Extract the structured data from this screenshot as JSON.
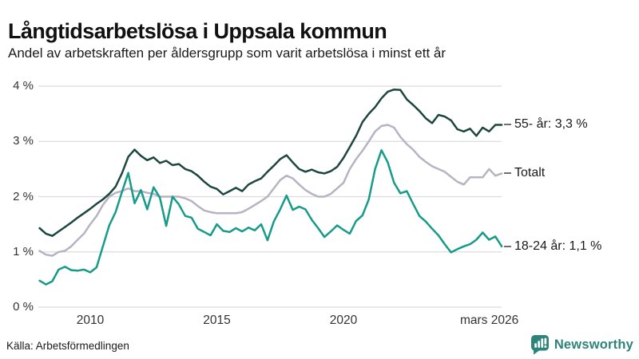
{
  "header": {
    "title": "Långtidsarbetslösa i Uppsala kommun",
    "subtitle": "Andel av arbetskraften per åldersgrupp som varit arbetslösa i minst ett år"
  },
  "chart_data": {
    "type": "line",
    "title": "Långtidsarbetslösa i Uppsala kommun",
    "subtitle": "Andel av arbetskraften per åldersgrupp som varit arbetslösa i minst ett år",
    "y_unit": "%",
    "ylim": [
      0,
      4
    ],
    "grid": true,
    "legend_position": "right-end-labels",
    "x_start": 2008.0,
    "x_step": 0.25,
    "x_end": 2026.25,
    "yticks": [
      {
        "value": 4,
        "label": "4 %"
      },
      {
        "value": 3,
        "label": "3 %"
      },
      {
        "value": 2,
        "label": "2 %"
      },
      {
        "value": 1,
        "label": "1 %"
      },
      {
        "value": 0,
        "label": "0 %"
      }
    ],
    "xticks": [
      {
        "value": 2010,
        "label": "2010"
      },
      {
        "value": 2015,
        "label": "2015"
      },
      {
        "value": 2020,
        "label": "2020"
      },
      {
        "value": 2026.17,
        "label": "mars 2026",
        "dx": -13
      }
    ],
    "series": [
      {
        "id": "55-ar",
        "name": "55- år",
        "end_label": "55- år: 3,3 %",
        "latest_value": "3,3 %",
        "color": "#1d463e",
        "values": [
          1.43,
          1.33,
          1.29,
          1.37,
          1.45,
          1.53,
          1.62,
          1.7,
          1.78,
          1.87,
          1.95,
          2.05,
          2.18,
          2.42,
          2.72,
          2.85,
          2.74,
          2.66,
          2.71,
          2.61,
          2.65,
          2.57,
          2.59,
          2.5,
          2.46,
          2.38,
          2.27,
          2.18,
          2.14,
          2.04,
          2.1,
          2.16,
          2.1,
          2.22,
          2.28,
          2.33,
          2.45,
          2.56,
          2.68,
          2.75,
          2.62,
          2.5,
          2.45,
          2.49,
          2.44,
          2.42,
          2.46,
          2.54,
          2.7,
          2.9,
          3.1,
          3.35,
          3.5,
          3.62,
          3.78,
          3.9,
          3.94,
          3.93,
          3.76,
          3.66,
          3.55,
          3.42,
          3.33,
          3.48,
          3.45,
          3.38,
          3.22,
          3.18,
          3.23,
          3.1,
          3.25,
          3.18,
          3.3,
          3.3
        ]
      },
      {
        "id": "totalt",
        "name": "Totalt",
        "end_label": "Totalt",
        "latest_value": "2,4 %",
        "color": "#b7b3c3",
        "values": [
          1.02,
          0.95,
          0.93,
          1.0,
          1.02,
          1.1,
          1.22,
          1.33,
          1.5,
          1.65,
          1.85,
          2.0,
          2.07,
          2.1,
          2.15,
          2.1,
          2.1,
          2.07,
          2.05,
          2.0,
          2.0,
          2.0,
          2.0,
          1.97,
          1.92,
          1.83,
          1.75,
          1.72,
          1.7,
          1.7,
          1.7,
          1.7,
          1.72,
          1.78,
          1.85,
          1.92,
          2.0,
          2.15,
          2.3,
          2.38,
          2.33,
          2.22,
          2.12,
          2.05,
          2.0,
          2.0,
          2.05,
          2.15,
          2.25,
          2.5,
          2.68,
          2.83,
          3.0,
          3.18,
          3.28,
          3.3,
          3.25,
          3.08,
          2.95,
          2.85,
          2.72,
          2.63,
          2.55,
          2.5,
          2.45,
          2.36,
          2.27,
          2.22,
          2.35,
          2.35,
          2.35,
          2.5,
          2.38,
          2.42
        ]
      },
      {
        "id": "18-24-ar",
        "name": "18-24 år",
        "end_label": "18-24 år: 1,1 %",
        "latest_value": "1,1 %",
        "color": "#169a89",
        "values": [
          0.48,
          0.41,
          0.47,
          0.68,
          0.73,
          0.67,
          0.66,
          0.68,
          0.63,
          0.72,
          1.1,
          1.48,
          1.72,
          2.08,
          2.43,
          1.88,
          2.12,
          1.77,
          2.17,
          1.98,
          1.47,
          2.0,
          1.86,
          1.65,
          1.62,
          1.42,
          1.36,
          1.3,
          1.5,
          1.38,
          1.36,
          1.43,
          1.37,
          1.44,
          1.39,
          1.5,
          1.21,
          1.55,
          1.77,
          2.02,
          1.76,
          1.82,
          1.77,
          1.58,
          1.43,
          1.27,
          1.37,
          1.48,
          1.4,
          1.33,
          1.56,
          1.66,
          1.95,
          2.5,
          2.84,
          2.62,
          2.25,
          2.06,
          2.1,
          1.87,
          1.65,
          1.55,
          1.42,
          1.3,
          1.14,
          0.99,
          1.05,
          1.1,
          1.14,
          1.22,
          1.35,
          1.22,
          1.28,
          1.1
        ]
      }
    ]
  },
  "footer": {
    "source": "Källa: Arbetsförmedlingen",
    "brand": "Newsworthy"
  },
  "colors": {
    "series_55": "#1d463e",
    "series_totalt": "#b7b3c3",
    "series_18_24": "#169a89",
    "gridline": "#dcdcdf",
    "brand_teal": "#2e837a",
    "text": "#1a1a1a"
  }
}
